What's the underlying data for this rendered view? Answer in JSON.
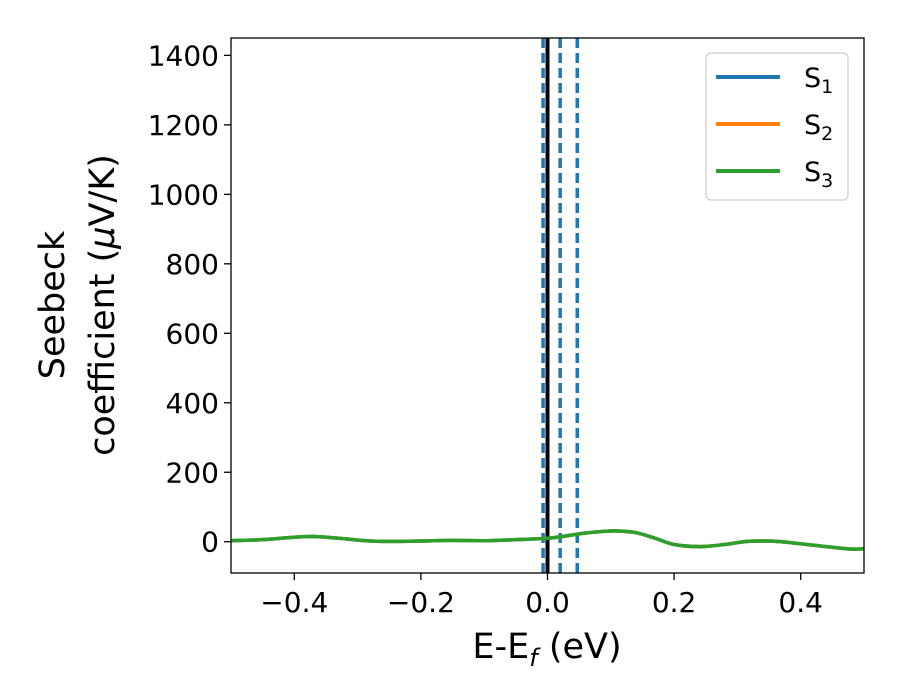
{
  "chart_data": {
    "type": "line",
    "xlabel": {
      "main": "E-E",
      "sub": "f",
      "unit": " (eV)"
    },
    "ylabel": {
      "line1": "Seebeck",
      "line2": "coefficient  (",
      "mu": "μ",
      "unit": "V/K)"
    },
    "xlim": [
      -0.5,
      0.5
    ],
    "ylim": [
      -90,
      1450
    ],
    "xticks": [
      -0.4,
      -0.2,
      0.0,
      0.2,
      0.4
    ],
    "xtick_labels": [
      "−0.4",
      "−0.2",
      "0.0",
      "0.2",
      "0.4"
    ],
    "yticks": [
      0,
      200,
      400,
      600,
      800,
      1000,
      1200,
      1400
    ],
    "ytick_labels": [
      "0",
      "200",
      "400",
      "600",
      "800",
      "1000",
      "1200",
      "1400"
    ],
    "grid": false,
    "legend_position": "top-right",
    "series": [
      {
        "name": "S",
        "sub": "1",
        "color": "#1f77b4",
        "x": [
          -0.5,
          -0.45,
          -0.4,
          -0.37,
          -0.33,
          -0.28,
          -0.24,
          -0.2,
          -0.15,
          -0.1,
          -0.05,
          0.0,
          0.03,
          0.06,
          0.09,
          0.11,
          0.14,
          0.17,
          0.2,
          0.24,
          0.28,
          0.31,
          0.34,
          0.37,
          0.4,
          0.44,
          0.48,
          0.5
        ],
        "y": [
          3,
          6,
          13,
          15,
          10,
          2,
          1,
          2,
          4,
          3,
          6,
          10,
          17,
          25,
          30,
          31,
          26,
          10,
          -8,
          -14,
          -8,
          0,
          2,
          0,
          -6,
          -14,
          -21,
          -20
        ]
      },
      {
        "name": "S",
        "sub": "2",
        "color": "#ff7f0e",
        "x": [
          -0.5,
          -0.45,
          -0.4,
          -0.37,
          -0.33,
          -0.28,
          -0.24,
          -0.2,
          -0.15,
          -0.1,
          -0.05,
          0.0,
          0.03,
          0.06,
          0.09,
          0.11,
          0.14,
          0.17,
          0.2,
          0.24,
          0.28,
          0.31,
          0.34,
          0.37,
          0.4,
          0.44,
          0.48,
          0.5
        ],
        "y": [
          3,
          6,
          13,
          15,
          10,
          2,
          1,
          2,
          4,
          3,
          6,
          10,
          17,
          25,
          30,
          31,
          26,
          10,
          -8,
          -14,
          -8,
          0,
          2,
          0,
          -6,
          -14,
          -21,
          -20
        ]
      },
      {
        "name": "S",
        "sub": "3",
        "color": "#2ca02c",
        "x": [
          -0.5,
          -0.45,
          -0.4,
          -0.37,
          -0.33,
          -0.28,
          -0.24,
          -0.2,
          -0.15,
          -0.1,
          -0.05,
          0.0,
          0.03,
          0.06,
          0.09,
          0.11,
          0.14,
          0.17,
          0.2,
          0.24,
          0.28,
          0.31,
          0.34,
          0.37,
          0.4,
          0.44,
          0.48,
          0.5
        ],
        "y": [
          3,
          6,
          13,
          15,
          10,
          2,
          1,
          2,
          4,
          3,
          6,
          10,
          17,
          25,
          30,
          31,
          26,
          10,
          -8,
          -14,
          -8,
          0,
          2,
          0,
          -6,
          -14,
          -21,
          -20
        ]
      }
    ],
    "vlines": [
      {
        "x": -0.007,
        "color": "#1f77b4",
        "style": "dashed"
      },
      {
        "x": 0.02,
        "color": "#1f77b4",
        "style": "dashed"
      },
      {
        "x": 0.047,
        "color": "#1f77b4",
        "style": "dashed"
      },
      {
        "x": 0.0,
        "color": "#000000",
        "style": "solid"
      }
    ]
  }
}
